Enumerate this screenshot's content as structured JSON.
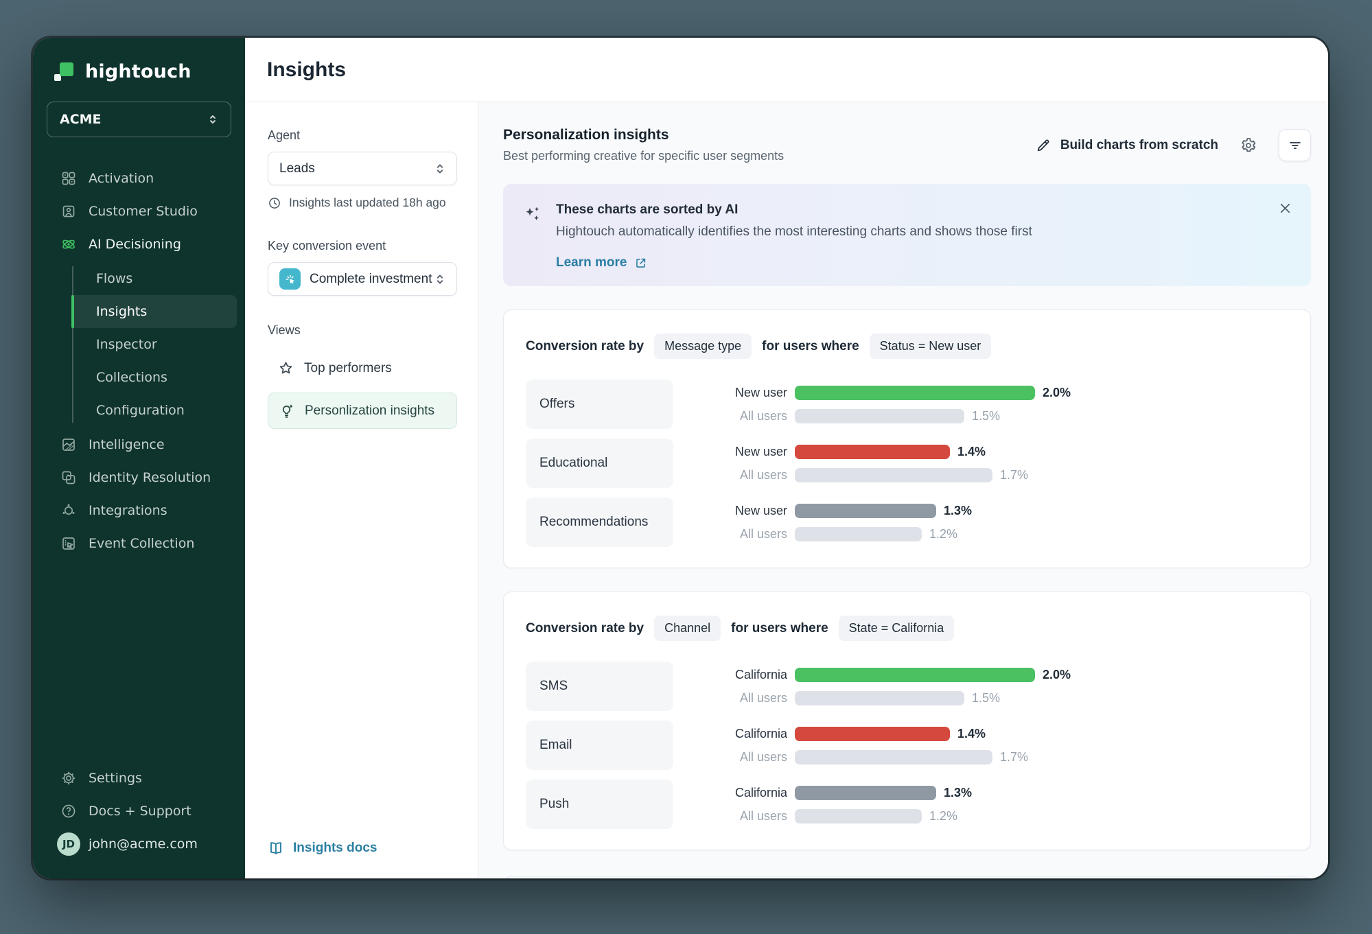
{
  "brand": {
    "name": "hightouch",
    "accent_green": "#3fc163"
  },
  "workspace": {
    "name": "ACME"
  },
  "sidebar": {
    "items": [
      {
        "label": "Activation"
      },
      {
        "label": "Customer Studio"
      },
      {
        "label": "AI Decisioning"
      },
      {
        "label": "Intelligence"
      },
      {
        "label": "Identity Resolution"
      },
      {
        "label": "Integrations"
      },
      {
        "label": "Event Collection"
      }
    ],
    "ai_sub_items": [
      "Flows",
      "Insights",
      "Inspector",
      "Collections",
      "Configuration"
    ],
    "active_sub_item": "Insights",
    "footer": [
      {
        "label": "Settings"
      },
      {
        "label": "Docs + Support"
      }
    ],
    "user": {
      "email": "john@acme.com",
      "initials": "JD"
    }
  },
  "header": {
    "title": "Insights"
  },
  "panel": {
    "agent_label": "Agent",
    "agent_value": "Leads",
    "last_updated": "Insights last updated 18h ago",
    "key_event_label": "Key conversion event",
    "key_event_value": "Complete investment",
    "views_label": "Views",
    "views": [
      {
        "label": "Top performers"
      },
      {
        "label": "Personlization insights"
      }
    ],
    "docs_link": "Insights docs"
  },
  "main": {
    "heading": "Personalization insights",
    "subheading": "Best performing creative for specific user segments",
    "build_button": "Build charts from scratch",
    "banner": {
      "title": "These charts are sorted by AI",
      "body": "Hightouch automatically identifies the most interesting charts and shows those first",
      "link": "Learn more"
    }
  },
  "chart_data": [
    {
      "type": "bar",
      "title_prefix": "Conversion rate by",
      "dimension": "Message type",
      "connector": "for users where",
      "filter": "Status = New user",
      "categories": [
        "Offers",
        "Educational",
        "Recommendations"
      ],
      "series": [
        {
          "name": "New user",
          "values": [
            2.0,
            1.4,
            1.3
          ]
        },
        {
          "name": "All users",
          "values": [
            1.5,
            1.7,
            1.2
          ]
        }
      ],
      "primary_colors": [
        "#4bc162",
        "#d5483d",
        "#8e99a4"
      ],
      "secondary_color": "#dee2e8",
      "value_suffix": "%",
      "xmax": 2.0,
      "grid": false,
      "legend": "inline-row-labels"
    },
    {
      "type": "bar",
      "title_prefix": "Conversion rate by",
      "dimension": "Channel",
      "connector": "for users where",
      "filter": "State = California",
      "categories": [
        "SMS",
        "Email",
        "Push"
      ],
      "series": [
        {
          "name": "California",
          "values": [
            2.0,
            1.4,
            1.3
          ]
        },
        {
          "name": "All users",
          "values": [
            1.5,
            1.7,
            1.2
          ]
        }
      ],
      "primary_colors": [
        "#4bc162",
        "#d5483d",
        "#8e99a4"
      ],
      "secondary_color": "#dee2e8",
      "value_suffix": "%",
      "xmax": 2.0,
      "grid": false,
      "legend": "inline-row-labels"
    }
  ]
}
